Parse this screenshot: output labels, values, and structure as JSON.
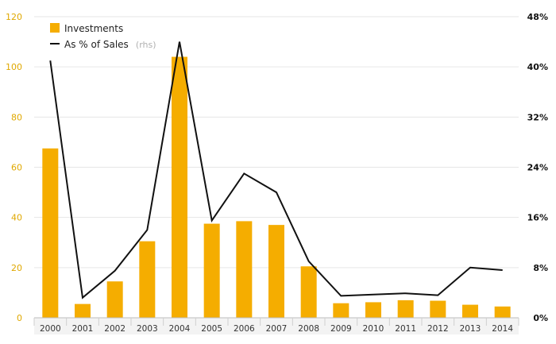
{
  "chart_data": {
    "type": "bar",
    "categories": [
      "2000",
      "2001",
      "2002",
      "2003",
      "2004",
      "2005",
      "2006",
      "2007",
      "2008",
      "2009",
      "2010",
      "2011",
      "2012",
      "2013",
      "2014"
    ],
    "series": [
      {
        "name": "Investments",
        "type": "bar",
        "axis": "left",
        "color": "#f5ad00",
        "values": [
          67.5,
          5.5,
          14.5,
          30.5,
          104,
          37.5,
          38.5,
          37,
          20.5,
          5.8,
          6.2,
          7,
          6.8,
          5.2,
          4.5
        ]
      },
      {
        "name": "As % of Sales",
        "name_suffix": "(rhs)",
        "type": "line",
        "axis": "right",
        "color": "#111111",
        "values": [
          41,
          3.2,
          7.5,
          14,
          44,
          15.5,
          23,
          20,
          9,
          3.5,
          3.7,
          3.9,
          3.6,
          8,
          7.6
        ]
      }
    ],
    "y_left": {
      "min": 0,
      "max": 120,
      "ticks": [
        "0",
        "20",
        "40",
        "60",
        "80",
        "100",
        "120"
      ],
      "color": "#e0a800"
    },
    "y_right": {
      "min": 0,
      "max": 48,
      "ticks": [
        "0%",
        "8%",
        "16%",
        "24%",
        "32%",
        "40%",
        "48%"
      ]
    },
    "grid": true,
    "legend": "top-left"
  }
}
